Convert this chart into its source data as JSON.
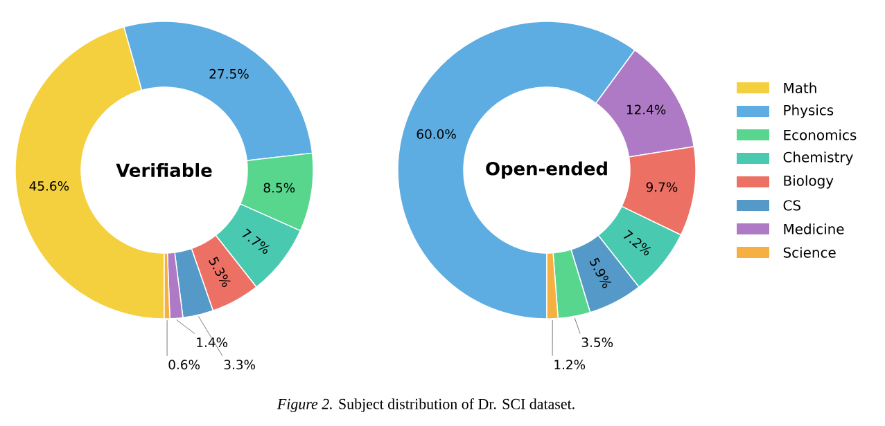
{
  "chart_data": [
    {
      "type": "donut",
      "title": "Verifiable",
      "legend": "right",
      "categories": [
        "Math",
        "Physics",
        "Economics",
        "Chemistry",
        "Biology",
        "CS",
        "Medicine",
        "Science"
      ],
      "values": [
        45.6,
        27.5,
        8.5,
        7.7,
        5.3,
        3.3,
        1.4,
        0.6
      ],
      "value_labels": [
        "45.6%",
        "27.5%",
        "8.5%",
        "7.7%",
        "5.3%",
        "3.3%",
        "1.4%",
        "0.6%"
      ],
      "colors": [
        "#f4d03f",
        "#5dade2",
        "#58d68d",
        "#48c9b0",
        "#ec7063",
        "#5499c7",
        "#af7ac5",
        "#f5b041"
      ],
      "annotations": [
        "*Figure 2.* Subject distribution of Dr. SCI dataset."
      ]
    },
    {
      "type": "donut",
      "title": "Open-ended",
      "categories": [
        null,
        null,
        null,
        null,
        null,
        null,
        null
      ],
      "values": [
        60.0,
        12.4,
        9.7,
        7.2,
        5.9,
        3.5,
        1.2
      ],
      "value_labels": [
        "60.0%",
        "12.4%",
        "9.7%",
        "7.2%",
        "5.9%",
        "3.5%",
        "1.2%"
      ],
      "colors": [
        "#5dade2",
        "#af7ac5",
        "#ec7063",
        "#48c9b0",
        "#5499c7",
        "#58d68d",
        "#f5b041"
      ]
    }
  ]
}
